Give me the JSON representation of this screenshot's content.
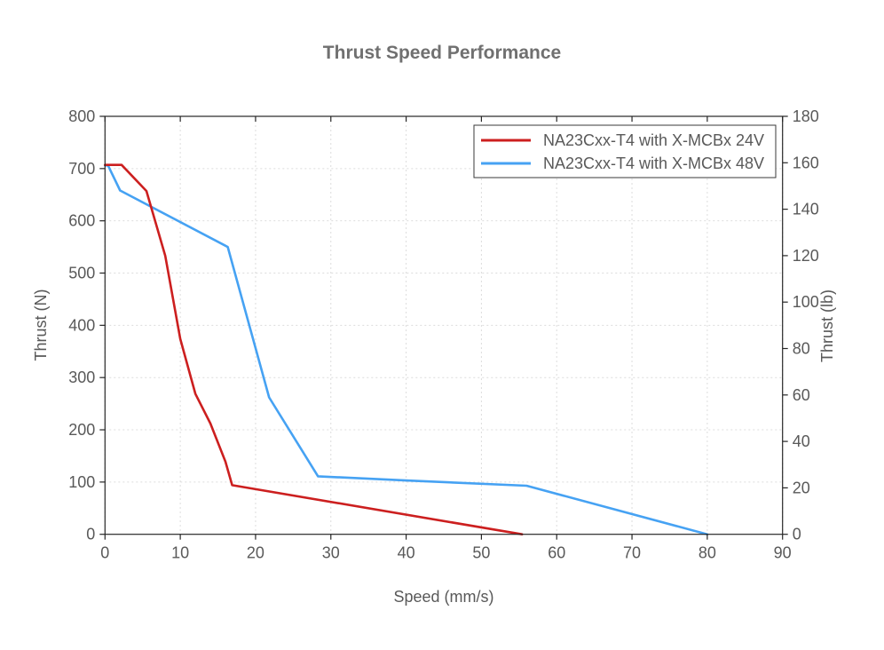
{
  "chart_data": {
    "type": "line",
    "title": "Thrust Speed Performance",
    "xlabel": "Speed (mm/s)",
    "ylabel_left": "Thrust (N)",
    "ylabel_right": "Thrust (lb)",
    "xlim": [
      0,
      90
    ],
    "ylim_left": [
      0,
      800
    ],
    "ylim_right": [
      0,
      180
    ],
    "x_ticks": [
      0,
      10,
      20,
      30,
      40,
      50,
      60,
      70,
      80,
      90
    ],
    "y_ticks_left": [
      0,
      100,
      200,
      300,
      400,
      500,
      600,
      700,
      800
    ],
    "y_ticks_right": [
      0,
      20,
      40,
      60,
      80,
      100,
      120,
      140,
      160,
      180
    ],
    "grid": true,
    "legend_position": "top-right",
    "colors": {
      "text": "#595959",
      "title": "#707070",
      "axis": "#262626",
      "grid": "#dcdcdc",
      "background": "#ffffff"
    },
    "series": [
      {
        "name": "NA23Cxx-T4 with X-MCBx 24V",
        "color": "#cc1f1f",
        "points": [
          [
            0,
            707
          ],
          [
            2.2,
            707
          ],
          [
            5.5,
            657
          ],
          [
            8,
            533
          ],
          [
            10,
            374
          ],
          [
            12,
            269
          ],
          [
            14,
            212
          ],
          [
            16,
            139
          ],
          [
            16.9,
            94
          ],
          [
            55.4,
            0
          ]
        ]
      },
      {
        "name": "NA23Cxx-T4 with X-MCBx 48V",
        "color": "#46a2f3",
        "points": [
          [
            0,
            706
          ],
          [
            0.4,
            706
          ],
          [
            2,
            658
          ],
          [
            16.3,
            550
          ],
          [
            21.8,
            262
          ],
          [
            28.3,
            111
          ],
          [
            40,
            103
          ],
          [
            56,
            93
          ],
          [
            80,
            0
          ]
        ]
      }
    ]
  }
}
